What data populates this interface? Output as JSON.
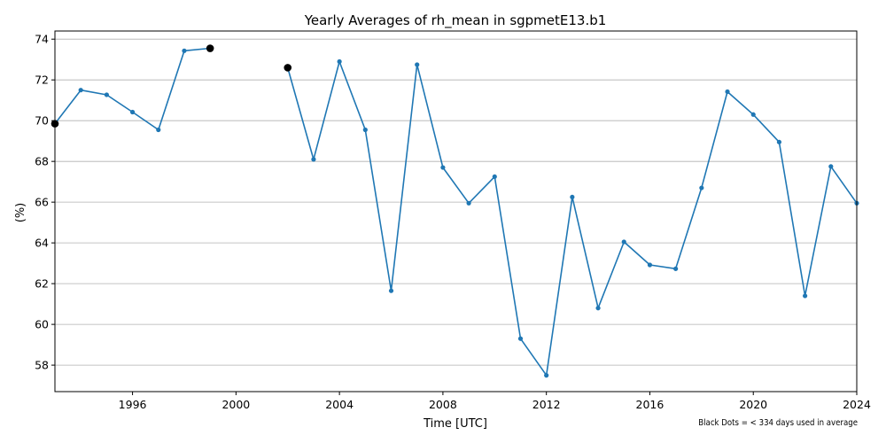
{
  "chart_data": {
    "type": "line",
    "title": "Yearly Averages of rh_mean in sgpmetE13.b1",
    "xlabel": "Time [UTC]",
    "ylabel": "(%)",
    "xlim": [
      1993,
      2024
    ],
    "ylim": [
      56.7,
      74.4
    ],
    "x_ticks": [
      "1996",
      "2000",
      "2004",
      "2008",
      "2012",
      "2016",
      "2020",
      "2024"
    ],
    "y_ticks": [
      "58",
      "60",
      "62",
      "64",
      "66",
      "68",
      "70",
      "72",
      "74"
    ],
    "grid": "horizontal",
    "line_color": "#1f77b4",
    "marker_highlight_color": "#000000",
    "series": [
      {
        "segments": [
          {
            "x": [
              1993,
              1994,
              1995,
              1996,
              1997,
              1998,
              1999
            ],
            "y": [
              69.85,
              71.5,
              71.27,
              70.42,
              69.55,
              73.43,
              73.55
            ]
          },
          {
            "x": [
              2002,
              2003,
              2004,
              2005,
              2006,
              2007,
              2008,
              2009,
              2010,
              2011,
              2012,
              2013,
              2014,
              2015,
              2016,
              2017,
              2018,
              2019,
              2020,
              2021,
              2022,
              2023,
              2024
            ],
            "y": [
              72.6,
              68.1,
              72.9,
              69.55,
              61.65,
              72.75,
              67.7,
              65.95,
              67.25,
              59.3,
              57.5,
              66.25,
              60.8,
              64.05,
              62.92,
              62.73,
              66.7,
              71.42,
              70.3,
              68.95,
              61.4,
              67.75,
              65.95
            ]
          }
        ],
        "black_dots": [
          {
            "x": 1993,
            "y": 69.85
          },
          {
            "x": 1999,
            "y": 73.55
          },
          {
            "x": 2002,
            "y": 72.6
          }
        ]
      }
    ],
    "footnote": "Black Dots = < 334 days used in average"
  }
}
